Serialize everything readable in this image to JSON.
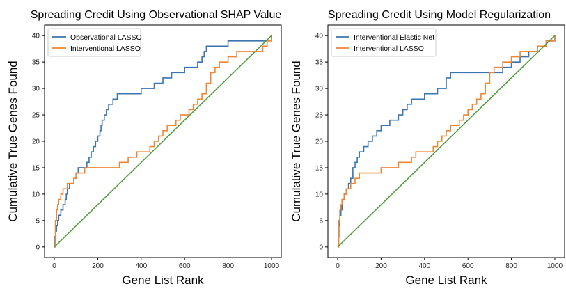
{
  "colors": {
    "blue": "#3b75af",
    "orange": "#ef8636",
    "green": "#519e3e",
    "frame": "#000000"
  },
  "chart_data": [
    {
      "type": "line",
      "title": "Spreading Credit Using Observational SHAP Value",
      "xlabel": "Gene List Rank",
      "ylabel": "Cumulative True Genes Found",
      "xlim": [
        -45,
        1045
      ],
      "ylim": [
        -2,
        42
      ],
      "xticks": [
        0,
        200,
        400,
        600,
        800,
        1000
      ],
      "yticks": [
        0,
        5,
        10,
        15,
        20,
        25,
        30,
        35,
        40
      ],
      "legend_position": "top-left",
      "grid": false,
      "series": [
        {
          "name": "Observational LASSO",
          "color": "#3b75af",
          "x": [
            0,
            3,
            6,
            10,
            15,
            20,
            30,
            40,
            50,
            55,
            60,
            70,
            80,
            90,
            100,
            110,
            130,
            150,
            160,
            170,
            180,
            190,
            200,
            210,
            215,
            220,
            230,
            240,
            250,
            260,
            270,
            280,
            290,
            300,
            320,
            340,
            360,
            380,
            400,
            420,
            440,
            460,
            480,
            500,
            520,
            540,
            560,
            580,
            600,
            620,
            640,
            660,
            680,
            690,
            700,
            720,
            760,
            790,
            800,
            840,
            1000
          ],
          "y": [
            0,
            2,
            3,
            4,
            5,
            6,
            7,
            8,
            9,
            10,
            11,
            12,
            12,
            13,
            14,
            15,
            15,
            16,
            17,
            18,
            19,
            20,
            21,
            22,
            23,
            24,
            25,
            26,
            27,
            27,
            28,
            28,
            29,
            29,
            29,
            29,
            29,
            29,
            30,
            30,
            30,
            31,
            31,
            32,
            32,
            33,
            33,
            33,
            34,
            34,
            34,
            35,
            36,
            37,
            38,
            38,
            38,
            38,
            39,
            39,
            40
          ]
        },
        {
          "name": "Interventional LASSO",
          "color": "#ef8636",
          "x": [
            0,
            5,
            10,
            15,
            20,
            30,
            40,
            50,
            60,
            70,
            80,
            90,
            100,
            120,
            140,
            160,
            200,
            240,
            280,
            300,
            320,
            340,
            360,
            380,
            400,
            420,
            440,
            460,
            480,
            500,
            520,
            540,
            560,
            580,
            600,
            620,
            640,
            660,
            680,
            700,
            720,
            740,
            760,
            800,
            840,
            940,
            960,
            980,
            1000
          ],
          "y": [
            0,
            5,
            7,
            8,
            9,
            10,
            11,
            11,
            12,
            12,
            12,
            13,
            14,
            14,
            15,
            15,
            15,
            15,
            15,
            16,
            16,
            17,
            17,
            18,
            18,
            18,
            19,
            20,
            21,
            22,
            23,
            23,
            24,
            25,
            25,
            26,
            27,
            28,
            29,
            31,
            33,
            34,
            35,
            36,
            37,
            37,
            38,
            39,
            40
          ]
        },
        {
          "name": "",
          "color": "#519e3e",
          "x": [
            0,
            1000
          ],
          "y": [
            0,
            40
          ]
        }
      ]
    },
    {
      "type": "line",
      "title": "Spreading Credit Using Model Regularization",
      "xlabel": "Gene List Rank",
      "ylabel": "Cumulative True Genes Found",
      "xlim": [
        -45,
        1045
      ],
      "ylim": [
        -2,
        42
      ],
      "xticks": [
        0,
        200,
        400,
        600,
        800,
        1000
      ],
      "yticks": [
        0,
        5,
        10,
        15,
        20,
        25,
        30,
        35,
        40
      ],
      "legend_position": "top-left",
      "grid": false,
      "series": [
        {
          "name": "Interventional Elastic Net",
          "color": "#3b75af",
          "x": [
            0,
            3,
            6,
            10,
            15,
            20,
            30,
            40,
            50,
            60,
            70,
            80,
            90,
            100,
            120,
            140,
            160,
            180,
            200,
            240,
            260,
            280,
            300,
            320,
            340,
            360,
            400,
            440,
            460,
            500,
            520,
            560,
            600,
            640,
            680,
            720,
            760,
            800,
            840,
            880,
            920,
            960,
            1000
          ],
          "y": [
            0,
            2,
            4,
            6,
            7,
            9,
            10,
            11,
            12,
            13,
            15,
            16,
            17,
            18,
            19,
            20,
            21,
            22,
            23,
            24,
            24,
            25,
            26,
            27,
            28,
            28,
            29,
            29,
            30,
            32,
            33,
            33,
            33,
            33,
            33,
            33,
            34,
            35,
            36,
            37,
            38,
            39,
            40
          ]
        },
        {
          "name": "Interventional LASSO",
          "color": "#ef8636",
          "x": [
            0,
            5,
            10,
            15,
            20,
            30,
            40,
            50,
            60,
            80,
            100,
            140,
            200,
            260,
            280,
            300,
            320,
            340,
            360,
            400,
            420,
            440,
            460,
            480,
            500,
            520,
            540,
            560,
            580,
            600,
            620,
            640,
            660,
            680,
            700,
            720,
            760,
            800,
            840,
            880,
            920,
            960,
            1000
          ],
          "y": [
            0,
            5,
            7,
            8,
            9,
            10,
            11,
            11,
            12,
            13,
            14,
            14,
            15,
            15,
            16,
            16,
            16,
            17,
            18,
            18,
            18,
            19,
            20,
            21,
            22,
            23,
            23,
            24,
            25,
            26,
            27,
            28,
            29,
            31,
            33,
            34,
            35,
            36,
            37,
            37,
            38,
            39,
            40
          ]
        },
        {
          "name": "",
          "color": "#519e3e",
          "x": [
            0,
            1000
          ],
          "y": [
            0,
            40
          ]
        }
      ]
    }
  ]
}
